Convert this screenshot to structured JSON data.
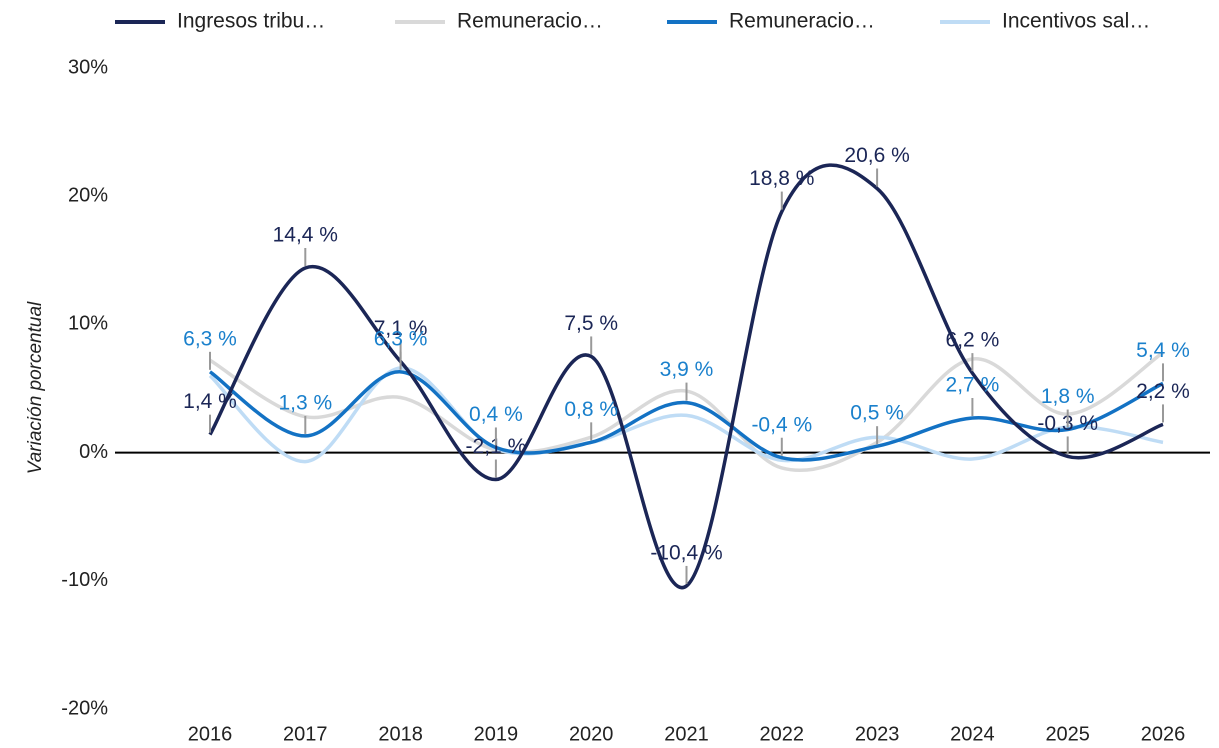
{
  "chart_data": {
    "type": "line",
    "y_label": "Variación porcentual",
    "categories": [
      "2016",
      "2017",
      "2018",
      "2019",
      "2020",
      "2021",
      "2022",
      "2023",
      "2024",
      "2025",
      "2026"
    ],
    "series": [
      {
        "name": "Ingresos tribu…",
        "color": "#1b2656",
        "label_color": "#1b2656",
        "values": [
          1.4,
          14.4,
          7.1,
          -2.1,
          7.5,
          -10.4,
          18.8,
          20.6,
          6.2,
          -0.3,
          2.2
        ],
        "value_labels": [
          "1,4 %",
          "14,4 %",
          "7,1 %",
          "-2,1 %",
          "7,5 %",
          "-10,4 %",
          "18,8 %",
          "20,6 %",
          "6,2 %",
          "-0,3 %",
          "2,2 %"
        ]
      },
      {
        "name": "Remuneracio…",
        "color": "#d9d9d9",
        "values": [
          7.2,
          2.8,
          4.3,
          0.2,
          1.2,
          4.8,
          -1.2,
          0.8,
          7.3,
          3.0,
          7.8
        ]
      },
      {
        "name": "Remuneracio…",
        "color": "#1372c4",
        "label_color": "#1a80cc",
        "values": [
          6.3,
          1.3,
          6.3,
          0.4,
          0.8,
          3.9,
          -0.4,
          0.5,
          2.7,
          1.8,
          5.4
        ],
        "value_labels": [
          "6,3 %",
          "1,3 %",
          "6,3 %",
          "0,4 %",
          "0,8 %",
          "3,9 %",
          "-0,4 %",
          "0,5 %",
          "2,7 %",
          "1,8 %",
          "5,4 %"
        ]
      },
      {
        "name": "Incentivos sal…",
        "color": "#bfdcf5",
        "values": [
          6.0,
          -0.7,
          6.6,
          0.3,
          0.8,
          2.9,
          -0.6,
          1.2,
          -0.5,
          2.0,
          0.8
        ]
      }
    ],
    "ylim": [
      -20,
      30
    ],
    "yticks": [
      {
        "value": -20,
        "label": "-20%"
      },
      {
        "value": -10,
        "label": "-10%"
      },
      {
        "value": 0,
        "label": "0%"
      },
      {
        "value": 10,
        "label": "10%"
      },
      {
        "value": 20,
        "label": "20%"
      },
      {
        "value": 30,
        "label": "30%"
      }
    ],
    "grid": false,
    "legend": "top",
    "smooth": true
  }
}
